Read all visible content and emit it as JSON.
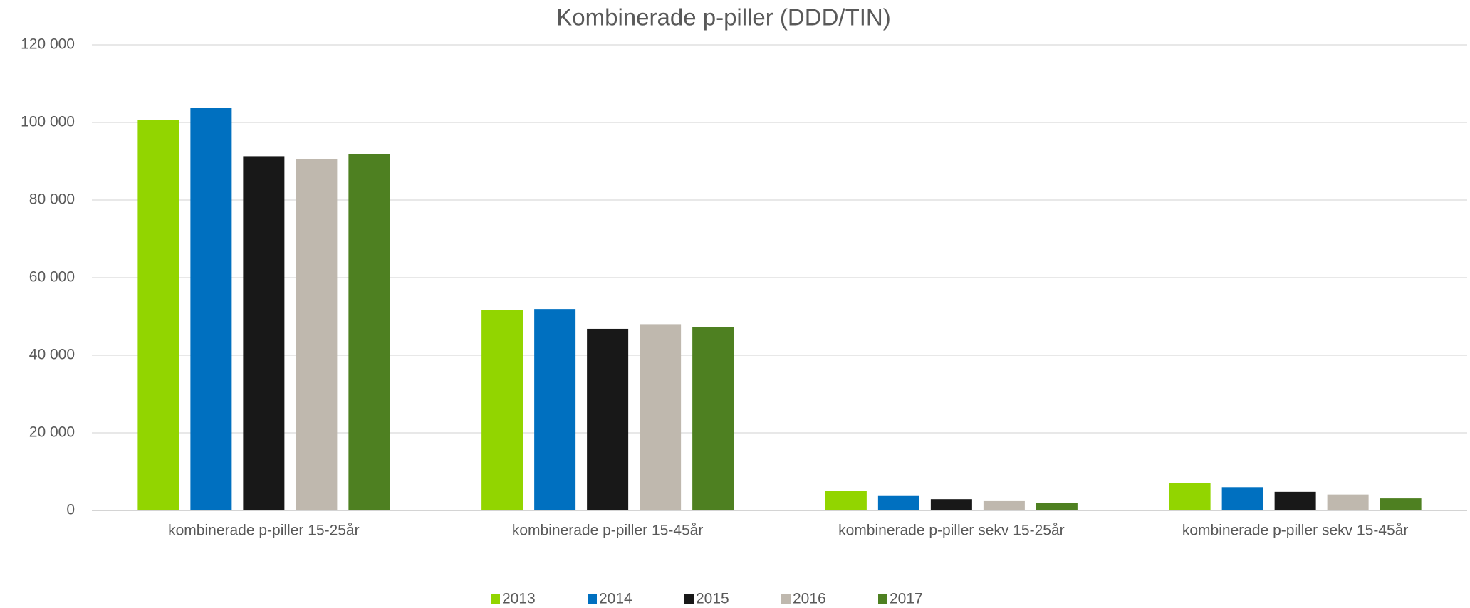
{
  "chart_data": {
    "type": "bar",
    "title": "Kombinerade p-piller (DDD/TIN)",
    "categories": [
      "kombinerade p-piller 15-25år",
      "kombinerade p-piller 15-45år",
      "kombinerade p-piller sekv 15-25år",
      "kombinerade p-piller sekv 15-45år"
    ],
    "series": [
      {
        "name": "2013",
        "color": "#92d500",
        "values": [
          100700,
          51700,
          5100,
          7000
        ]
      },
      {
        "name": "2014",
        "color": "#0070c0",
        "values": [
          103800,
          51900,
          3900,
          6000
        ]
      },
      {
        "name": "2015",
        "color": "#181818",
        "values": [
          91300,
          46800,
          2900,
          4800
        ]
      },
      {
        "name": "2016",
        "color": "#bfb8ae",
        "values": [
          90500,
          48000,
          2400,
          4100
        ]
      },
      {
        "name": "2017",
        "color": "#4e8021",
        "values": [
          91800,
          47300,
          1900,
          3100
        ]
      }
    ],
    "ylim": [
      0,
      120000
    ],
    "yticks": [
      0,
      {
        "value": 20000,
        "label": "20 000"
      },
      {
        "value": 40000,
        "label": "40 000"
      },
      {
        "value": 60000,
        "label": "60 000"
      },
      {
        "value": 80000,
        "label": "80 000"
      },
      {
        "value": 100000,
        "label": "100 000"
      },
      {
        "value": 120000,
        "label": "120 000"
      }
    ],
    "grid": true,
    "legend": "bottom"
  }
}
